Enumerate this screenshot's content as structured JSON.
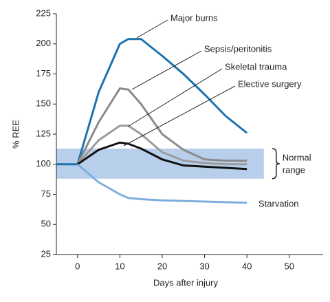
{
  "chart_data": {
    "type": "line",
    "xlabel": "Days after injury",
    "ylabel": "% REE",
    "x": [
      -5,
      0,
      5,
      10,
      12,
      15,
      20,
      25,
      30,
      35,
      40
    ],
    "series": [
      {
        "name": "Major burns",
        "color": "#1b72ac",
        "values": [
          100,
          100,
          160,
          200,
          204,
          204,
          190,
          175,
          158,
          140,
          126
        ]
      },
      {
        "name": "Sepsis/peritonitis",
        "color": "#8a8a8a",
        "values": [
          null,
          100,
          135,
          163,
          162,
          150,
          125,
          112,
          104,
          103,
          103
        ]
      },
      {
        "name": "Skeletal trauma",
        "color": "#9c9c9c",
        "values": [
          null,
          100,
          120,
          132,
          132,
          125,
          110,
          103,
          101,
          100,
          100
        ]
      },
      {
        "name": "Elective surgery",
        "color": "#111111",
        "values": [
          null,
          100,
          112,
          118,
          117,
          113,
          104,
          99,
          98,
          97,
          96
        ]
      },
      {
        "name": "Starvation",
        "color": "#7eaedb",
        "values": [
          null,
          100,
          85,
          75,
          72,
          71,
          70,
          69.5,
          69,
          68.5,
          68
        ]
      }
    ],
    "band": {
      "label": [
        "Normal",
        "range"
      ],
      "color": "#b8cfec",
      "x": [
        -5,
        44
      ],
      "y": [
        88,
        113
      ]
    },
    "xlim": [
      -5,
      58
    ],
    "ylim": [
      25,
      225
    ],
    "xticks": [
      0,
      10,
      20,
      30,
      40,
      50
    ],
    "yticks": [
      25,
      50,
      75,
      100,
      125,
      150,
      175,
      200,
      225
    ]
  }
}
